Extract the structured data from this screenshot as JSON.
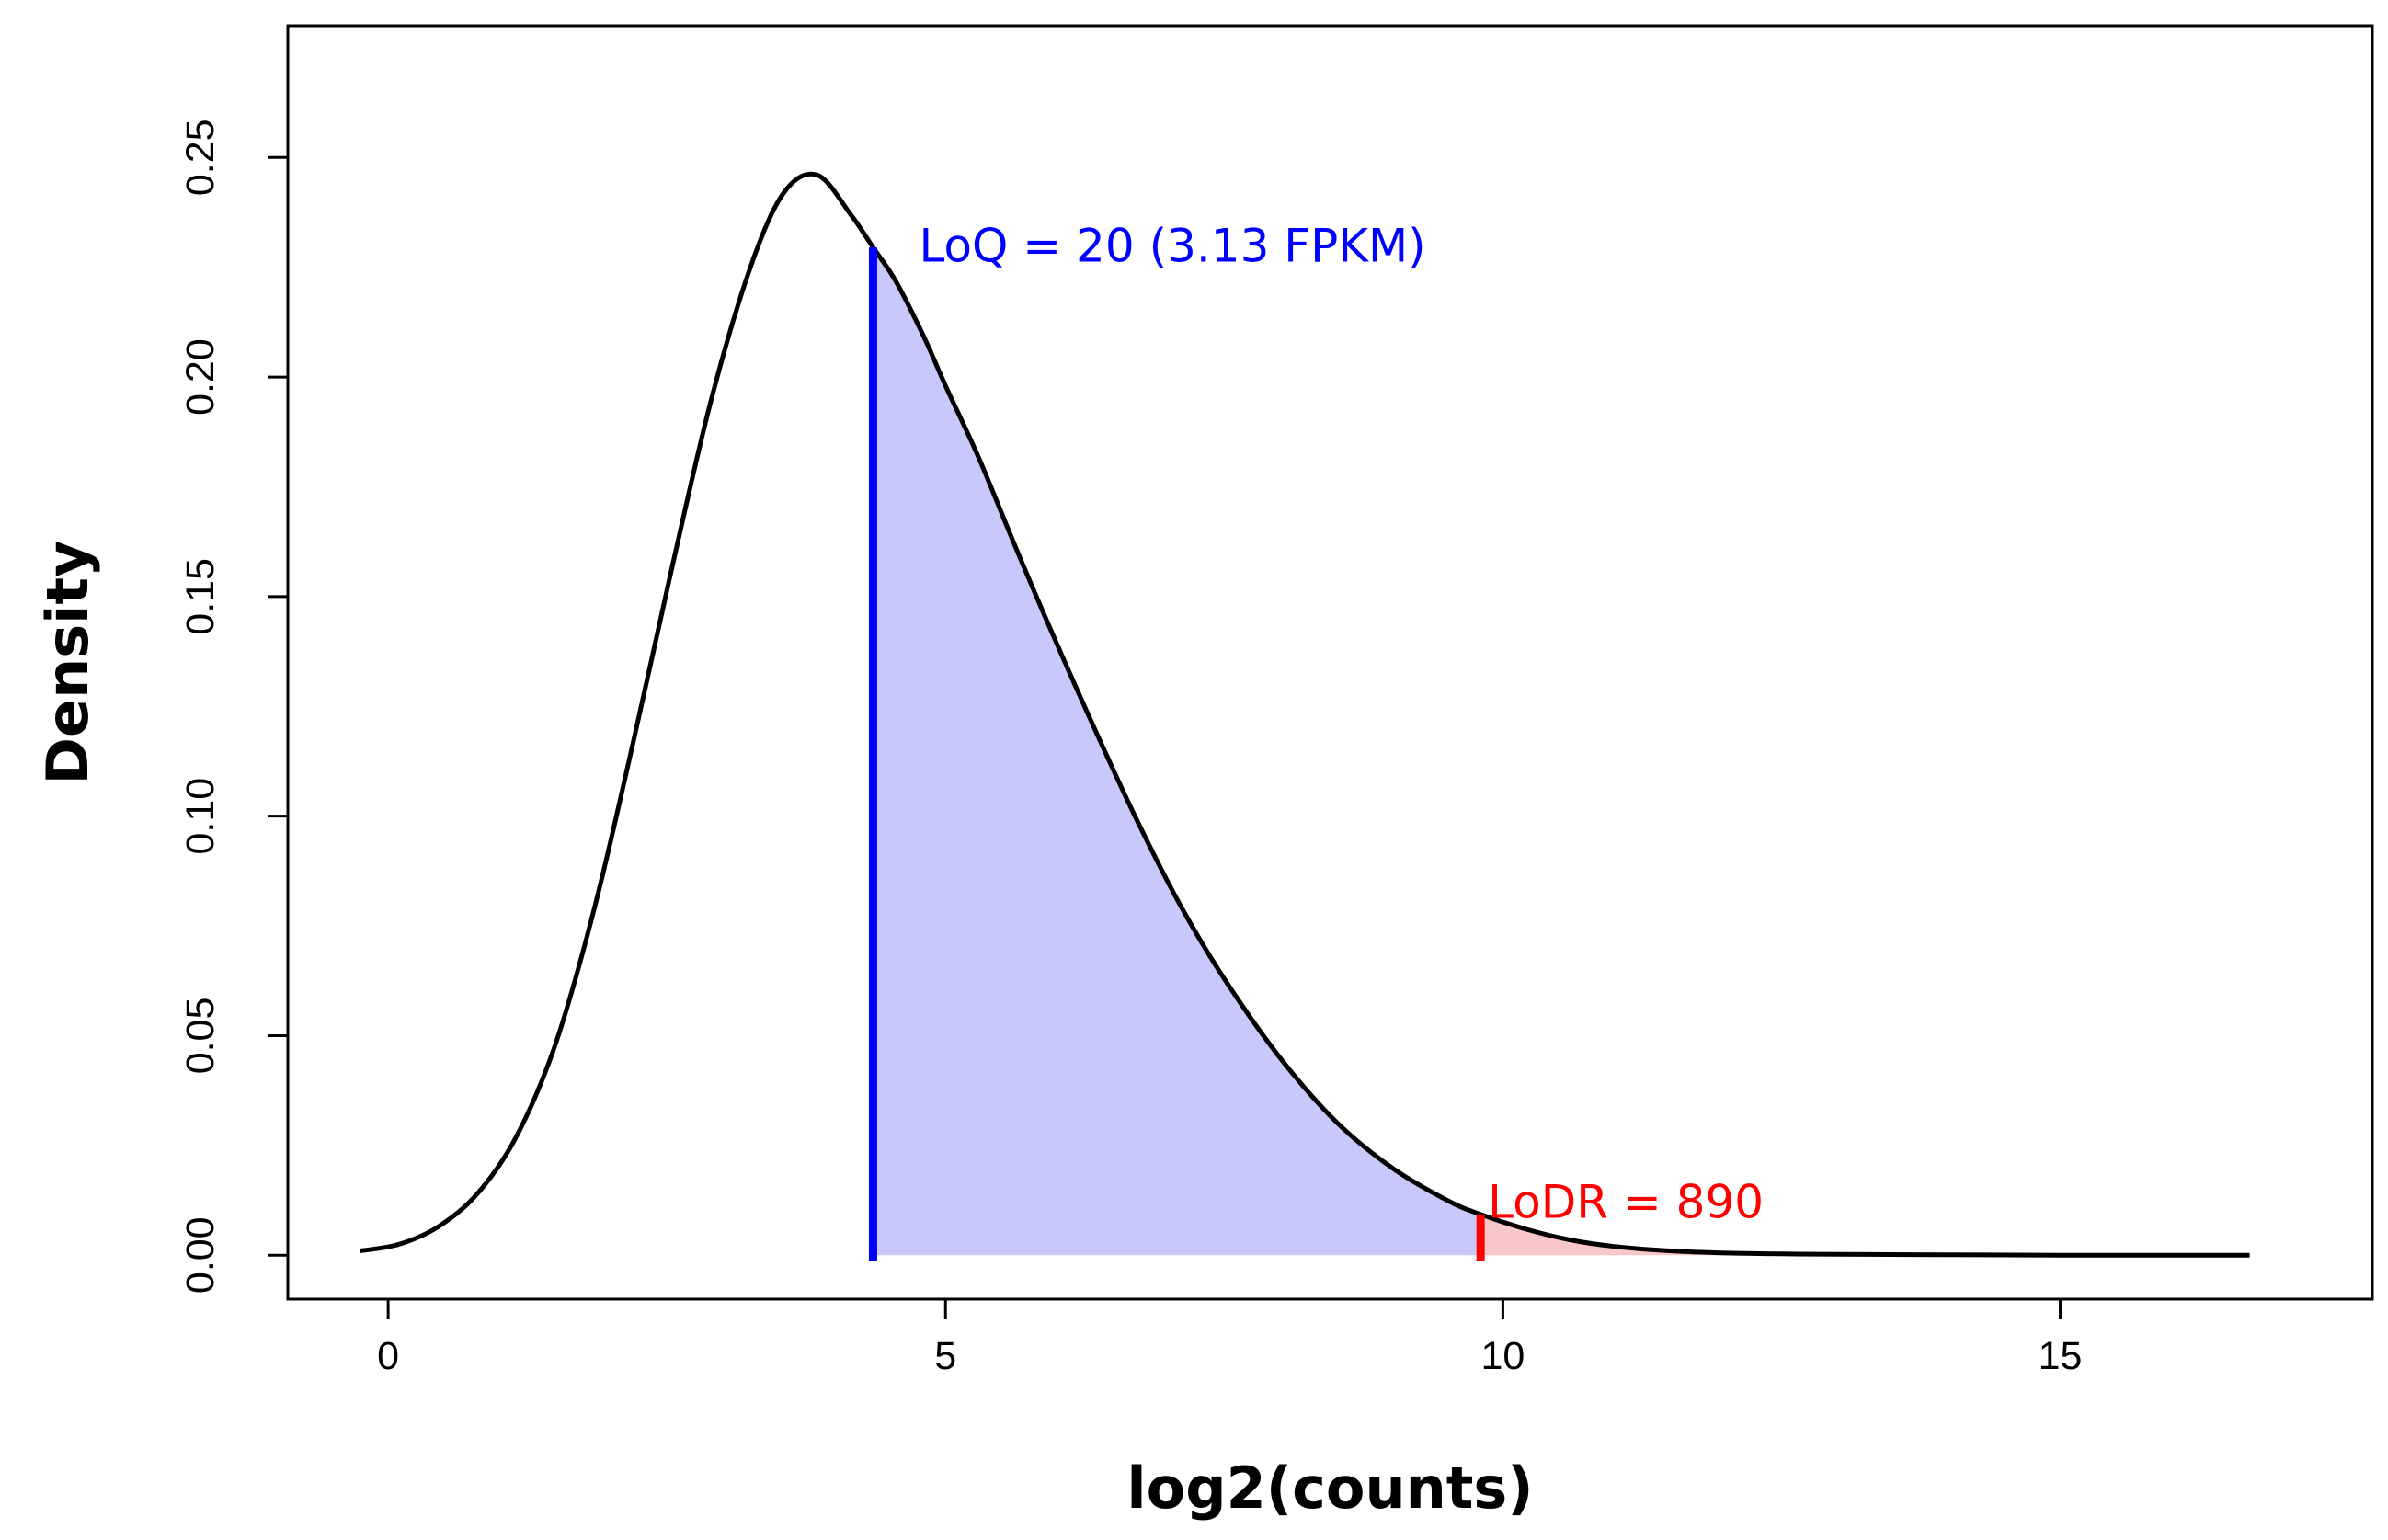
{
  "chart_data": {
    "type": "line",
    "title": "",
    "xlabel": "log2(counts)",
    "ylabel": "Density",
    "xlim": [
      -0.9,
      17.8
    ],
    "ylim": [
      -0.01,
      0.28
    ],
    "x_ticks": [
      0,
      5,
      10,
      15
    ],
    "x_tick_labels": [
      "0",
      "5",
      "10",
      "15"
    ],
    "y_ticks": [
      0.0,
      0.05,
      0.1,
      0.15,
      0.2,
      0.25
    ],
    "y_tick_labels": [
      "0.00",
      "0.05",
      "0.10",
      "0.15",
      "0.20",
      "0.25"
    ],
    "grid": false,
    "series": [
      {
        "name": "density",
        "color": "#000000",
        "x": [
          -0.25,
          0.1,
          0.45,
          0.8,
          1.15,
          1.5,
          1.85,
          2.2,
          2.55,
          2.9,
          3.25,
          3.55,
          3.85,
          4.15,
          4.35,
          4.55,
          4.8,
          5.0,
          5.3,
          5.6,
          5.9,
          6.3,
          6.7,
          7.1,
          7.5,
          8.0,
          8.5,
          9.0,
          9.5,
          9.8,
          10.2,
          10.6,
          11.0,
          11.5,
          12.0,
          12.5,
          13.0,
          14.0,
          15.0,
          16.0,
          16.7
        ],
        "y": [
          0.001,
          0.0025,
          0.0065,
          0.014,
          0.027,
          0.048,
          0.079,
          0.117,
          0.157,
          0.195,
          0.225,
          0.242,
          0.246,
          0.237,
          0.2295,
          0.222,
          0.2095,
          0.198,
          0.1815,
          0.163,
          0.145,
          0.122,
          0.1,
          0.08,
          0.063,
          0.045,
          0.0305,
          0.02,
          0.0125,
          0.0093,
          0.006,
          0.0035,
          0.002,
          0.001,
          0.0005,
          0.0003,
          0.0002,
          0.0001,
          0.0,
          0.0,
          0.0
        ]
      }
    ],
    "shaded_regions": [
      {
        "name": "LoQ to LoDR",
        "from": 4.35,
        "to": 9.8,
        "color": "#c8c8fa"
      },
      {
        "name": "above LoDR",
        "from": 9.8,
        "to": 16.7,
        "color": "#f8c8c8"
      }
    ],
    "vertical_markers": [
      {
        "name": "LoQ",
        "x": 4.35,
        "color": "#0000ff",
        "label": "LoQ = 20 (3.13 FPKM)"
      },
      {
        "name": "LoDR",
        "x": 9.8,
        "color": "#ff0000",
        "label": "LoDR = 890"
      }
    ]
  }
}
